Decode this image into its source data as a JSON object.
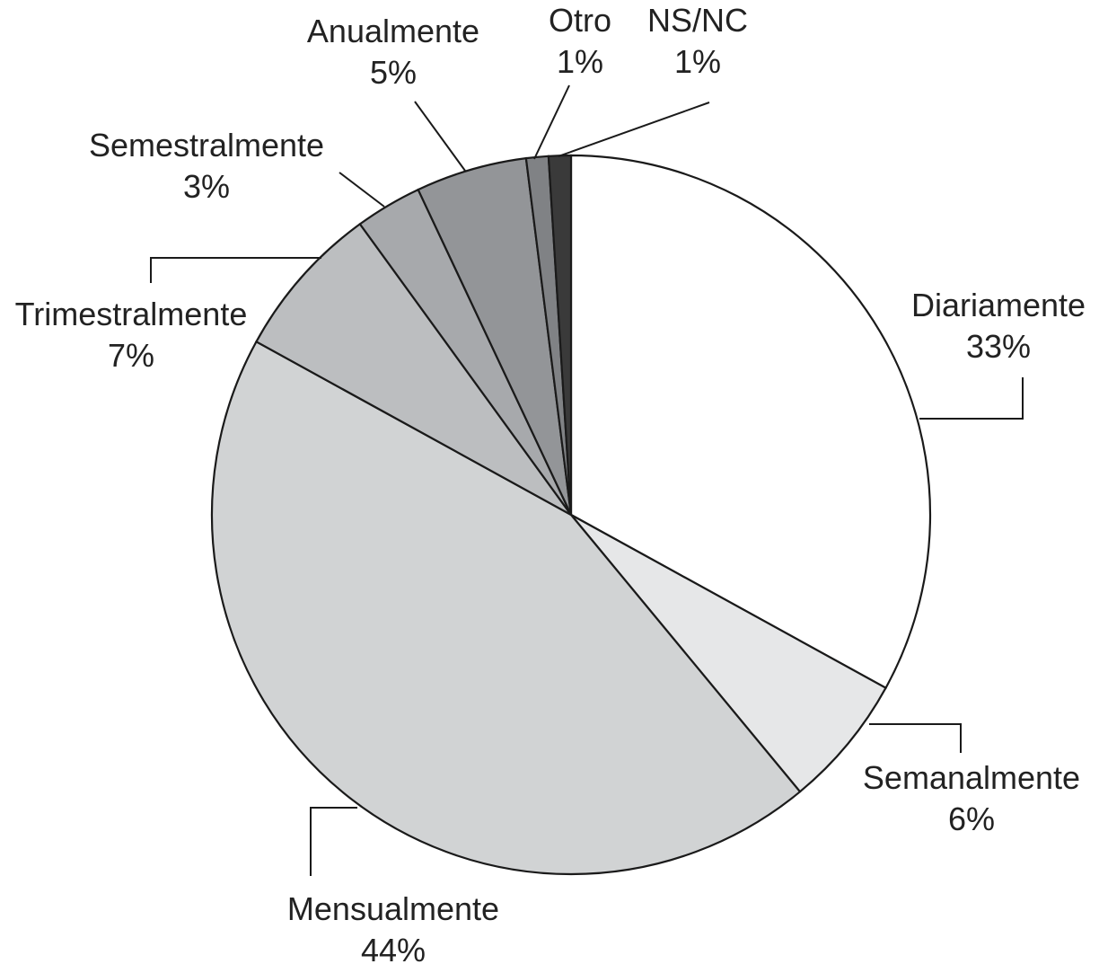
{
  "chart_data": {
    "type": "pie",
    "title": "",
    "slices": [
      {
        "label": "Diariamente",
        "value": 33,
        "value_label": "33%",
        "color": "#ffffff"
      },
      {
        "label": "Semanalmente",
        "value": 6,
        "value_label": "6%",
        "color": "#e6e7e8"
      },
      {
        "label": "Mensualmente",
        "value": 44,
        "value_label": "44%",
        "color": "#d1d3d4"
      },
      {
        "label": "Trimestralmente",
        "value": 7,
        "value_label": "7%",
        "color": "#bcbec0"
      },
      {
        "label": "Semestralmente",
        "value": 3,
        "value_label": "3%",
        "color": "#a7a9ac"
      },
      {
        "label": "Anualmente",
        "value": 5,
        "value_label": "5%",
        "color": "#939598"
      },
      {
        "label": "Otro",
        "value": 1,
        "value_label": "1%",
        "color": "#808285"
      },
      {
        "label": "NS/NC",
        "value": 1,
        "value_label": "1%",
        "color": "#3a3a3a"
      }
    ],
    "start": "12 o'clock",
    "direction": "clockwise",
    "legend": "none"
  }
}
